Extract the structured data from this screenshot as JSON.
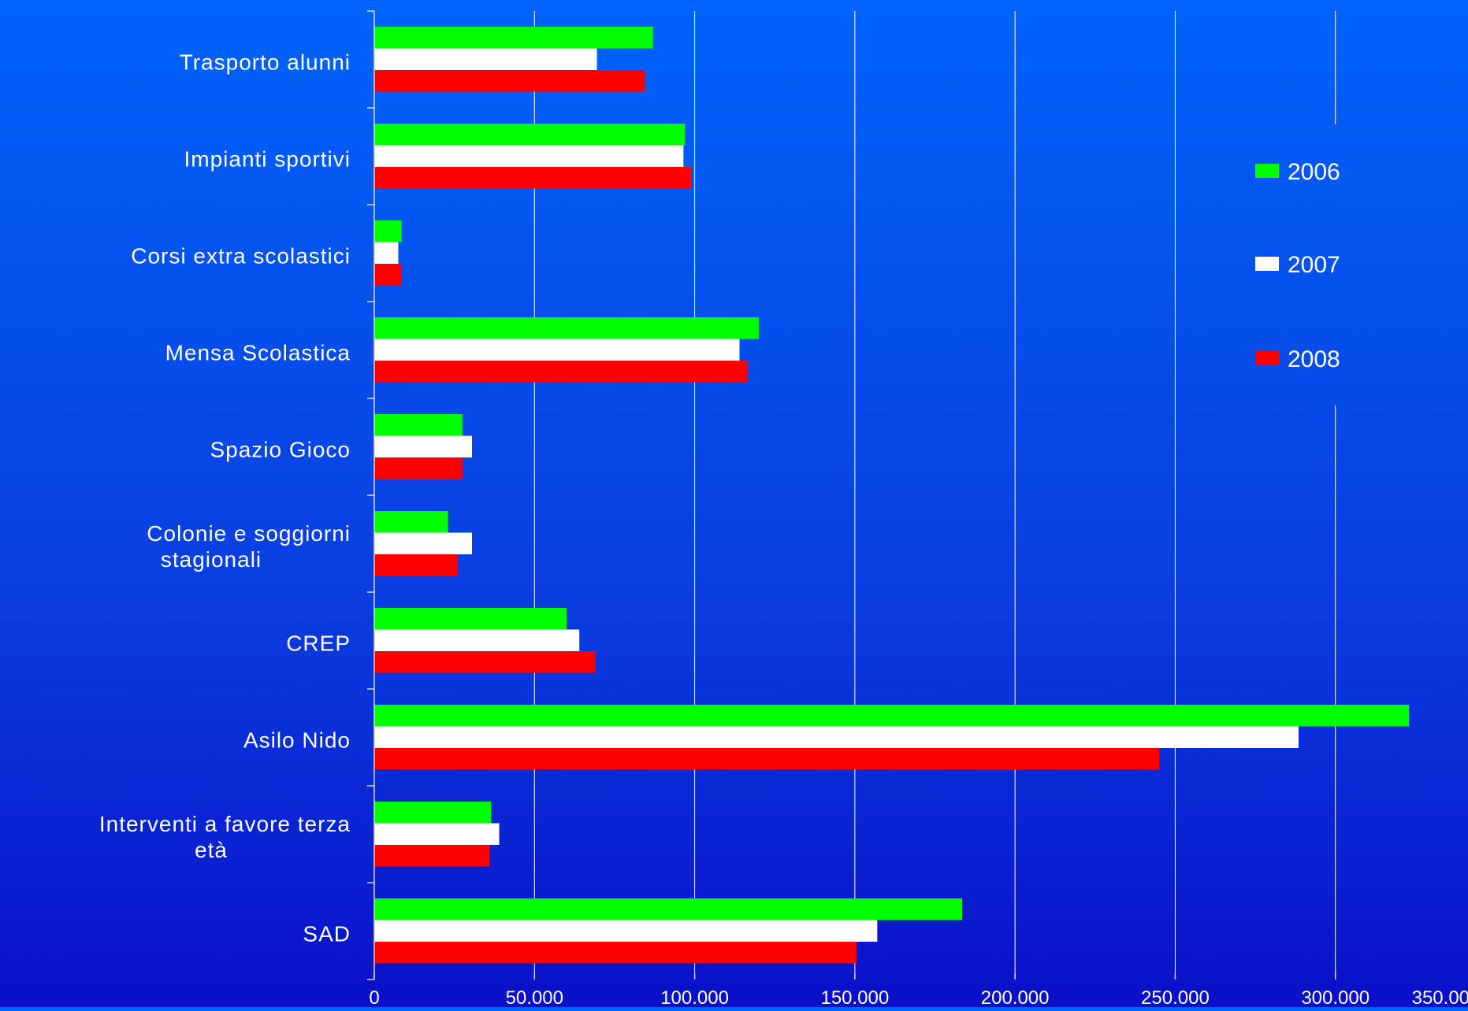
{
  "chart_data": {
    "type": "bar",
    "orientation": "horizontal",
    "categories": [
      [
        "Trasporto alunni"
      ],
      [
        "Impianti sportivi"
      ],
      [
        "Corsi extra scolastici"
      ],
      [
        "Mensa Scolastica"
      ],
      [
        "Spazio Gioco"
      ],
      [
        "Colonie e soggiorni",
        "stagionali"
      ],
      [
        "CREP"
      ],
      [
        "Asilo Nido"
      ],
      [
        "Interventi a favore terza",
        "età"
      ],
      [
        "SAD"
      ]
    ],
    "series": [
      {
        "name": "2006",
        "color": "#00ff00",
        "values": [
          87000,
          97000,
          8500,
          120000,
          27500,
          23000,
          60000,
          323000,
          36500,
          183500
        ]
      },
      {
        "name": "2007",
        "color": "#ffffff",
        "values": [
          69500,
          96500,
          7500,
          114000,
          30500,
          30500,
          64000,
          288500,
          39000,
          157000
        ]
      },
      {
        "name": "2008",
        "color": "#ff0000",
        "values": [
          84500,
          99000,
          8500,
          116500,
          27500,
          26000,
          69000,
          245000,
          36000,
          150500
        ]
      }
    ],
    "xlim": [
      0,
      350000
    ],
    "xticks": [
      "0",
      "50.000",
      "100.000",
      "150.000",
      "200.000",
      "250.000",
      "300.000",
      "350.000"
    ],
    "grid": "vertical",
    "legend": "right"
  }
}
